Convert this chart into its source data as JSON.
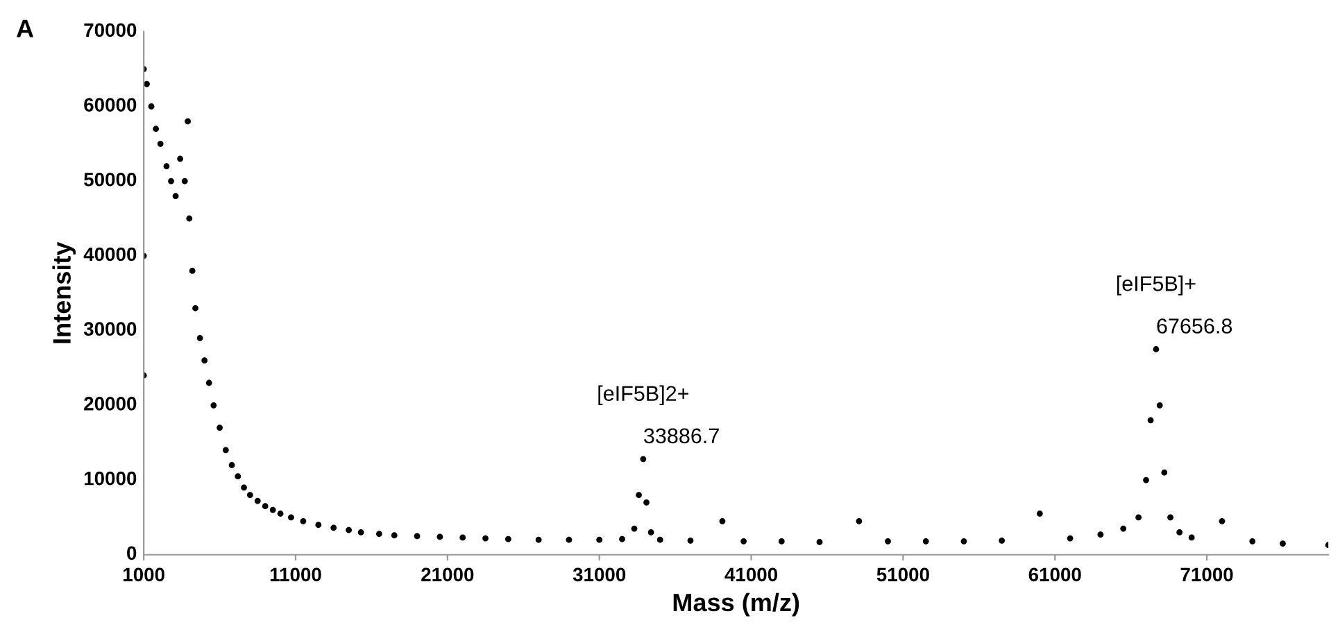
{
  "chart_data": {
    "type": "scatter",
    "xlabel": "Mass (m/z)",
    "ylabel": "Intensity",
    "annotations": [
      "A",
      "[eIF5B]2+",
      {
        "text": "33886.7",
        "x": 33886.7,
        "y": 12800
      },
      "[eIF5B]+",
      {
        "text": "67656.8",
        "x": 67656.8,
        "y": 27500
      }
    ],
    "series": [
      {
        "color": "#000000",
        "x": [
          1000,
          1000,
          1000,
          1200,
          1500,
          1800,
          2100,
          2500,
          2800,
          3100,
          3400,
          3700,
          3900,
          4000,
          4200,
          4400,
          4700,
          5000,
          5300,
          5600,
          6000,
          6400,
          6800,
          7200,
          7600,
          8000,
          8500,
          9000,
          9500,
          10000,
          10700,
          11500,
          12500,
          13500,
          14500,
          15300,
          16500,
          17500,
          19000,
          20500,
          22000,
          23500,
          25000,
          27000,
          29000,
          31000,
          32500,
          33300,
          33600,
          33886.7,
          34100,
          34400,
          35000,
          37000,
          39100,
          40500,
          43000,
          45500,
          48100,
          50000,
          52500,
          55000,
          57500,
          60000,
          62000,
          64000,
          65500,
          66500,
          67000,
          67300,
          67656.8,
          67900,
          68200,
          68600,
          69200,
          70000,
          72000,
          74000,
          76000,
          79000
        ],
        "values": [
          24000,
          40000,
          65000,
          63000,
          60000,
          57000,
          55000,
          52000,
          50000,
          48000,
          53000,
          50000,
          58000,
          45000,
          38000,
          33000,
          29000,
          26000,
          23000,
          20000,
          17000,
          14000,
          12000,
          10500,
          9000,
          8000,
          7200,
          6500,
          6000,
          5500,
          5000,
          4500,
          4000,
          3600,
          3300,
          3000,
          2800,
          2600,
          2500,
          2400,
          2300,
          2200,
          2100,
          2000,
          2000,
          2000,
          2100,
          3500,
          8000,
          12800,
          7000,
          3000,
          2000,
          1900,
          4500,
          1800,
          1800,
          1700,
          4500,
          1800,
          1800,
          1800,
          1900,
          5500,
          2200,
          2700,
          3500,
          5000,
          10000,
          18000,
          27500,
          20000,
          11000,
          5000,
          3000,
          2300,
          4500,
          1800,
          1500,
          1300
        ]
      }
    ],
    "marker": "circle",
    "xlim": [
      1000,
      79000
    ],
    "ylim": [
      0,
      70000
    ],
    "xticks": [
      1000,
      11000,
      21000,
      31000,
      41000,
      51000,
      61000,
      71000
    ],
    "yticks": [
      0,
      10000,
      20000,
      30000,
      40000,
      50000,
      60000,
      70000
    ],
    "grid": false,
    "legend": false
  }
}
